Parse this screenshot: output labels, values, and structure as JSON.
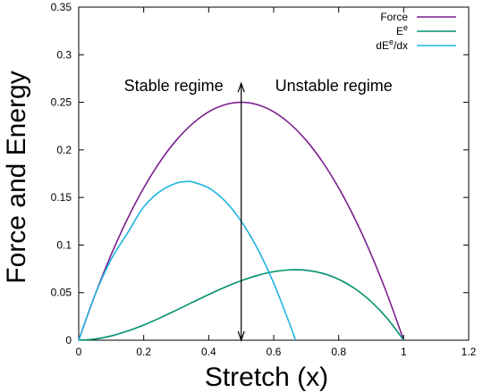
{
  "chart_data": {
    "type": "line",
    "xlabel": "Stretch (x)",
    "ylabel": "Force and Energy",
    "xlim": [
      0,
      1.2
    ],
    "ylim": [
      0,
      0.35
    ],
    "xticks": [
      "0",
      "0.2",
      "0.4",
      "0.6",
      "0.8",
      "1",
      "1.2"
    ],
    "yticks": [
      "0",
      "0.05",
      "0.1",
      "0.15",
      "0.2",
      "0.25",
      "0.3",
      "0.35"
    ],
    "grid": false,
    "legend_position": "top-right",
    "series": [
      {
        "name": "Force",
        "legend_base": "Force",
        "legend_sup": "",
        "legend_tail": "",
        "color": "#7b1f8e",
        "x": [
          0,
          0.05,
          0.1,
          0.15,
          0.2,
          0.25,
          0.3,
          0.35,
          0.4,
          0.45,
          0.5,
          0.55,
          0.6,
          0.65,
          0.7,
          0.75,
          0.8,
          0.85,
          0.9,
          0.95,
          1.0
        ],
        "y": [
          0,
          0.0475,
          0.09,
          0.1275,
          0.16,
          0.1875,
          0.21,
          0.2275,
          0.24,
          0.2475,
          0.25,
          0.2475,
          0.24,
          0.2275,
          0.21,
          0.1875,
          0.16,
          0.1275,
          0.09,
          0.0475,
          0
        ]
      },
      {
        "name": "Ee",
        "legend_base": "E",
        "legend_sup": "e",
        "legend_tail": "",
        "color": "#00906e",
        "x": [
          0,
          0.05,
          0.1,
          0.15,
          0.2,
          0.25,
          0.3,
          0.35,
          0.4,
          0.45,
          0.5,
          0.55,
          0.6,
          0.65,
          0.7,
          0.75,
          0.8,
          0.85,
          0.9,
          0.95,
          1.0
        ],
        "y": [
          0,
          0.0012,
          0.0045,
          0.0096,
          0.016,
          0.0234,
          0.0315,
          0.0398,
          0.048,
          0.0557,
          0.0625,
          0.0681,
          0.072,
          0.0739,
          0.0735,
          0.0703,
          0.064,
          0.0542,
          0.0405,
          0.0226,
          0
        ]
      },
      {
        "name": "dEe/dx",
        "legend_base": "dE",
        "legend_sup": "e",
        "legend_tail": "/dx",
        "color": "#1fb4e0",
        "x": [
          0,
          0.05,
          0.1,
          0.15,
          0.2,
          0.25,
          0.3,
          0.333,
          0.35,
          0.4,
          0.45,
          0.5,
          0.55,
          0.6,
          0.65,
          0.667
        ],
        "y": [
          0,
          0.0475,
          0.085,
          0.1125,
          0.14,
          0.1563,
          0.165,
          0.1667,
          0.1663,
          0.16,
          0.1463,
          0.125,
          0.0963,
          0.06,
          0.0163,
          0
        ]
      }
    ],
    "annotations": {
      "left": "Stable regime",
      "right": "Unstable regime",
      "arrow_x": 0.5,
      "arrow_y_range": [
        0,
        0.27
      ]
    }
  }
}
